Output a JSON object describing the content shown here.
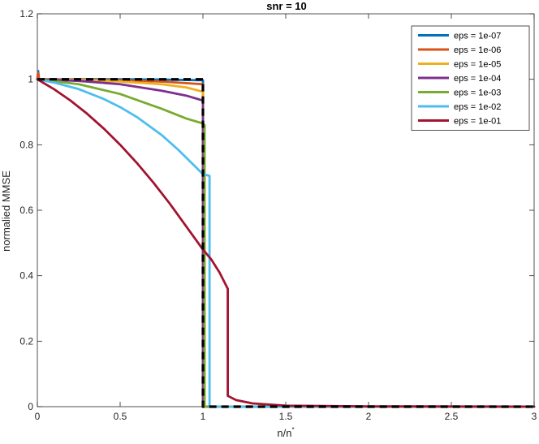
{
  "chart_data": {
    "type": "line",
    "title": "snr = 10",
    "xlabel": "n/n",
    "xlabel_superscript": "*",
    "ylabel": "normalied MMSE",
    "xlim": [
      0,
      3
    ],
    "ylim": [
      0,
      1.2
    ],
    "xticks": [
      0,
      0.5,
      1,
      1.5,
      2,
      2.5,
      3
    ],
    "xtick_labels": [
      "0",
      "0.5",
      "1",
      "1.5",
      "2",
      "2.5",
      "3"
    ],
    "yticks": [
      0,
      0.2,
      0.4,
      0.6,
      0.8,
      1,
      1.2
    ],
    "ytick_labels": [
      "0",
      "0.2",
      "0.4",
      "0.6",
      "0.8",
      "1",
      "1.2"
    ],
    "grid": false,
    "legend_position": "top-right",
    "series": [
      {
        "name": "eps = 1e-07",
        "color": "#0072BD",
        "x": [
          0,
          0.005,
          0.01,
          0.02,
          0.25,
          0.5,
          0.75,
          1.0,
          1.0,
          1.02,
          3
        ],
        "y": [
          1.0,
          1.025,
          1.0,
          1.0,
          1.0,
          1.0,
          0.999,
          0.997,
          0.0,
          0.0,
          0.0
        ]
      },
      {
        "name": "eps = 1e-06",
        "color": "#D95319",
        "x": [
          0,
          0.005,
          0.01,
          0.02,
          0.25,
          0.5,
          0.75,
          1.0,
          1.0,
          1.02,
          3
        ],
        "y": [
          1.0,
          1.02,
          1.0,
          1.0,
          0.999,
          0.997,
          0.993,
          0.985,
          0.0,
          0.0,
          0.0
        ]
      },
      {
        "name": "eps = 1e-05",
        "color": "#EDB120",
        "x": [
          0,
          0.01,
          0.25,
          0.5,
          0.75,
          0.9,
          1.0,
          1.0,
          1.02,
          3
        ],
        "y": [
          1.0,
          1.0,
          0.998,
          0.993,
          0.985,
          0.975,
          0.962,
          0.0,
          0.0,
          0.0
        ]
      },
      {
        "name": "eps = 1e-04",
        "color": "#7E2F8E",
        "x": [
          0,
          0.25,
          0.5,
          0.75,
          0.9,
          1.0,
          1.0,
          1.02,
          3
        ],
        "y": [
          1.0,
          0.995,
          0.985,
          0.965,
          0.95,
          0.935,
          0.0,
          0.0,
          0.0
        ]
      },
      {
        "name": "eps = 1e-03",
        "color": "#77AC30",
        "x": [
          0,
          0.25,
          0.5,
          0.75,
          0.9,
          1.0,
          1.01,
          1.01,
          1.03,
          3
        ],
        "y": [
          1.0,
          0.985,
          0.955,
          0.91,
          0.88,
          0.865,
          0.86,
          0.0,
          0.0,
          0.0
        ]
      },
      {
        "name": "eps = 1e-02",
        "color": "#4DBEEE",
        "x": [
          0,
          0.1,
          0.25,
          0.4,
          0.5,
          0.6,
          0.75,
          0.85,
          0.95,
          1.0,
          1.04,
          1.04,
          1.06,
          3
        ],
        "y": [
          1.0,
          0.99,
          0.97,
          0.94,
          0.915,
          0.885,
          0.83,
          0.785,
          0.735,
          0.71,
          0.705,
          0.0,
          0.0,
          0.0
        ]
      },
      {
        "name": "eps = 1e-01",
        "color": "#A2142F",
        "x": [
          0,
          0.1,
          0.2,
          0.3,
          0.4,
          0.5,
          0.6,
          0.7,
          0.8,
          0.9,
          1.0,
          1.05,
          1.1,
          1.15,
          1.15,
          1.2,
          1.3,
          1.5,
          2.0,
          3.0
        ],
        "y": [
          1.0,
          0.97,
          0.935,
          0.895,
          0.85,
          0.8,
          0.745,
          0.685,
          0.62,
          0.55,
          0.48,
          0.45,
          0.41,
          0.36,
          0.033,
          0.02,
          0.01,
          0.003,
          0.001,
          0.0
        ]
      },
      {
        "name": "",
        "color": "#000000",
        "dashed": true,
        "x": [
          0,
          1.0,
          1.0,
          3
        ],
        "y": [
          1.0,
          1.0,
          0.0,
          0.0
        ]
      }
    ]
  }
}
